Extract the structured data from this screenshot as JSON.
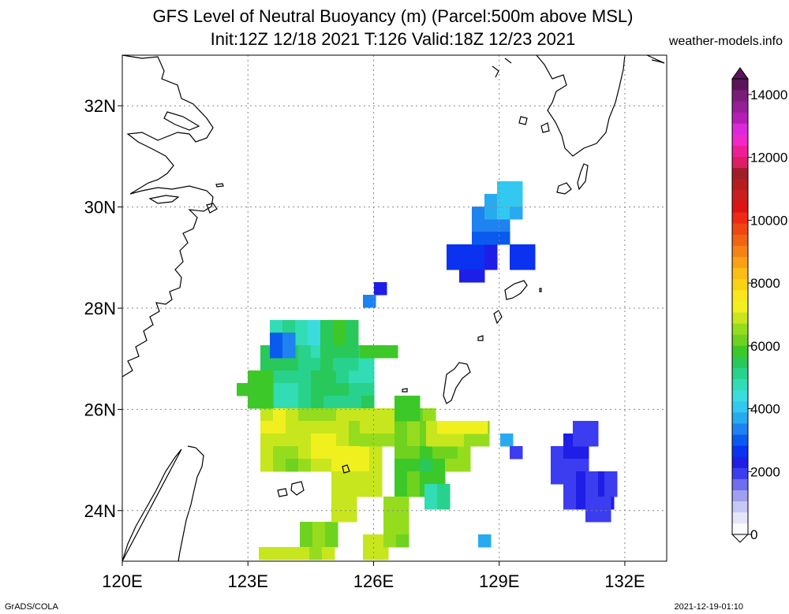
{
  "title_line1": "GFS Level of Neutral Buoyancy (m) (Parcel:500m above MSL)",
  "title_line2": "Init:12Z 12/18 2021 T:126 Valid:18Z 12/23 2021",
  "site": "weather-models.info",
  "footer_left": "GrADS/COLA",
  "footer_right": "2021-12-19-01:10",
  "map": {
    "lon_range": [
      120,
      133
    ],
    "lat_range": [
      23,
      33
    ],
    "lon_ticks": [
      "120E",
      "123E",
      "126E",
      "129E",
      "132E"
    ],
    "lat_ticks": [
      "32N",
      "30N",
      "28N",
      "26N",
      "24N"
    ]
  },
  "colorbar": {
    "labels": [
      "0",
      "2000",
      "4000",
      "6000",
      "8000",
      "10000",
      "12000",
      "14000"
    ],
    "colors": [
      "#fafaff",
      "#e6e6fa",
      "#c8c8f5",
      "#a0a0f0",
      "#6e6ef0",
      "#3c3cf0",
      "#1e1ee6",
      "#0a32f0",
      "#0a5af0",
      "#1e82f0",
      "#28aaf0",
      "#32c8f0",
      "#3cdcdc",
      "#32dcb4",
      "#28d28c",
      "#28c85a",
      "#3cc828",
      "#6ed21e",
      "#96dc1e",
      "#c8e61e",
      "#f0f01e",
      "#fae61e",
      "#fad214",
      "#fabe14",
      "#faa014",
      "#f58214",
      "#f06414",
      "#f04614",
      "#f02814",
      "#dc1414",
      "#c81e1e",
      "#b41e1e",
      "#a01e28",
      "#dc1e64",
      "#f01e96",
      "#f028c8",
      "#dc28dc",
      "#b41eb4",
      "#961e96",
      "#781e78",
      "#5a145a"
    ]
  }
}
